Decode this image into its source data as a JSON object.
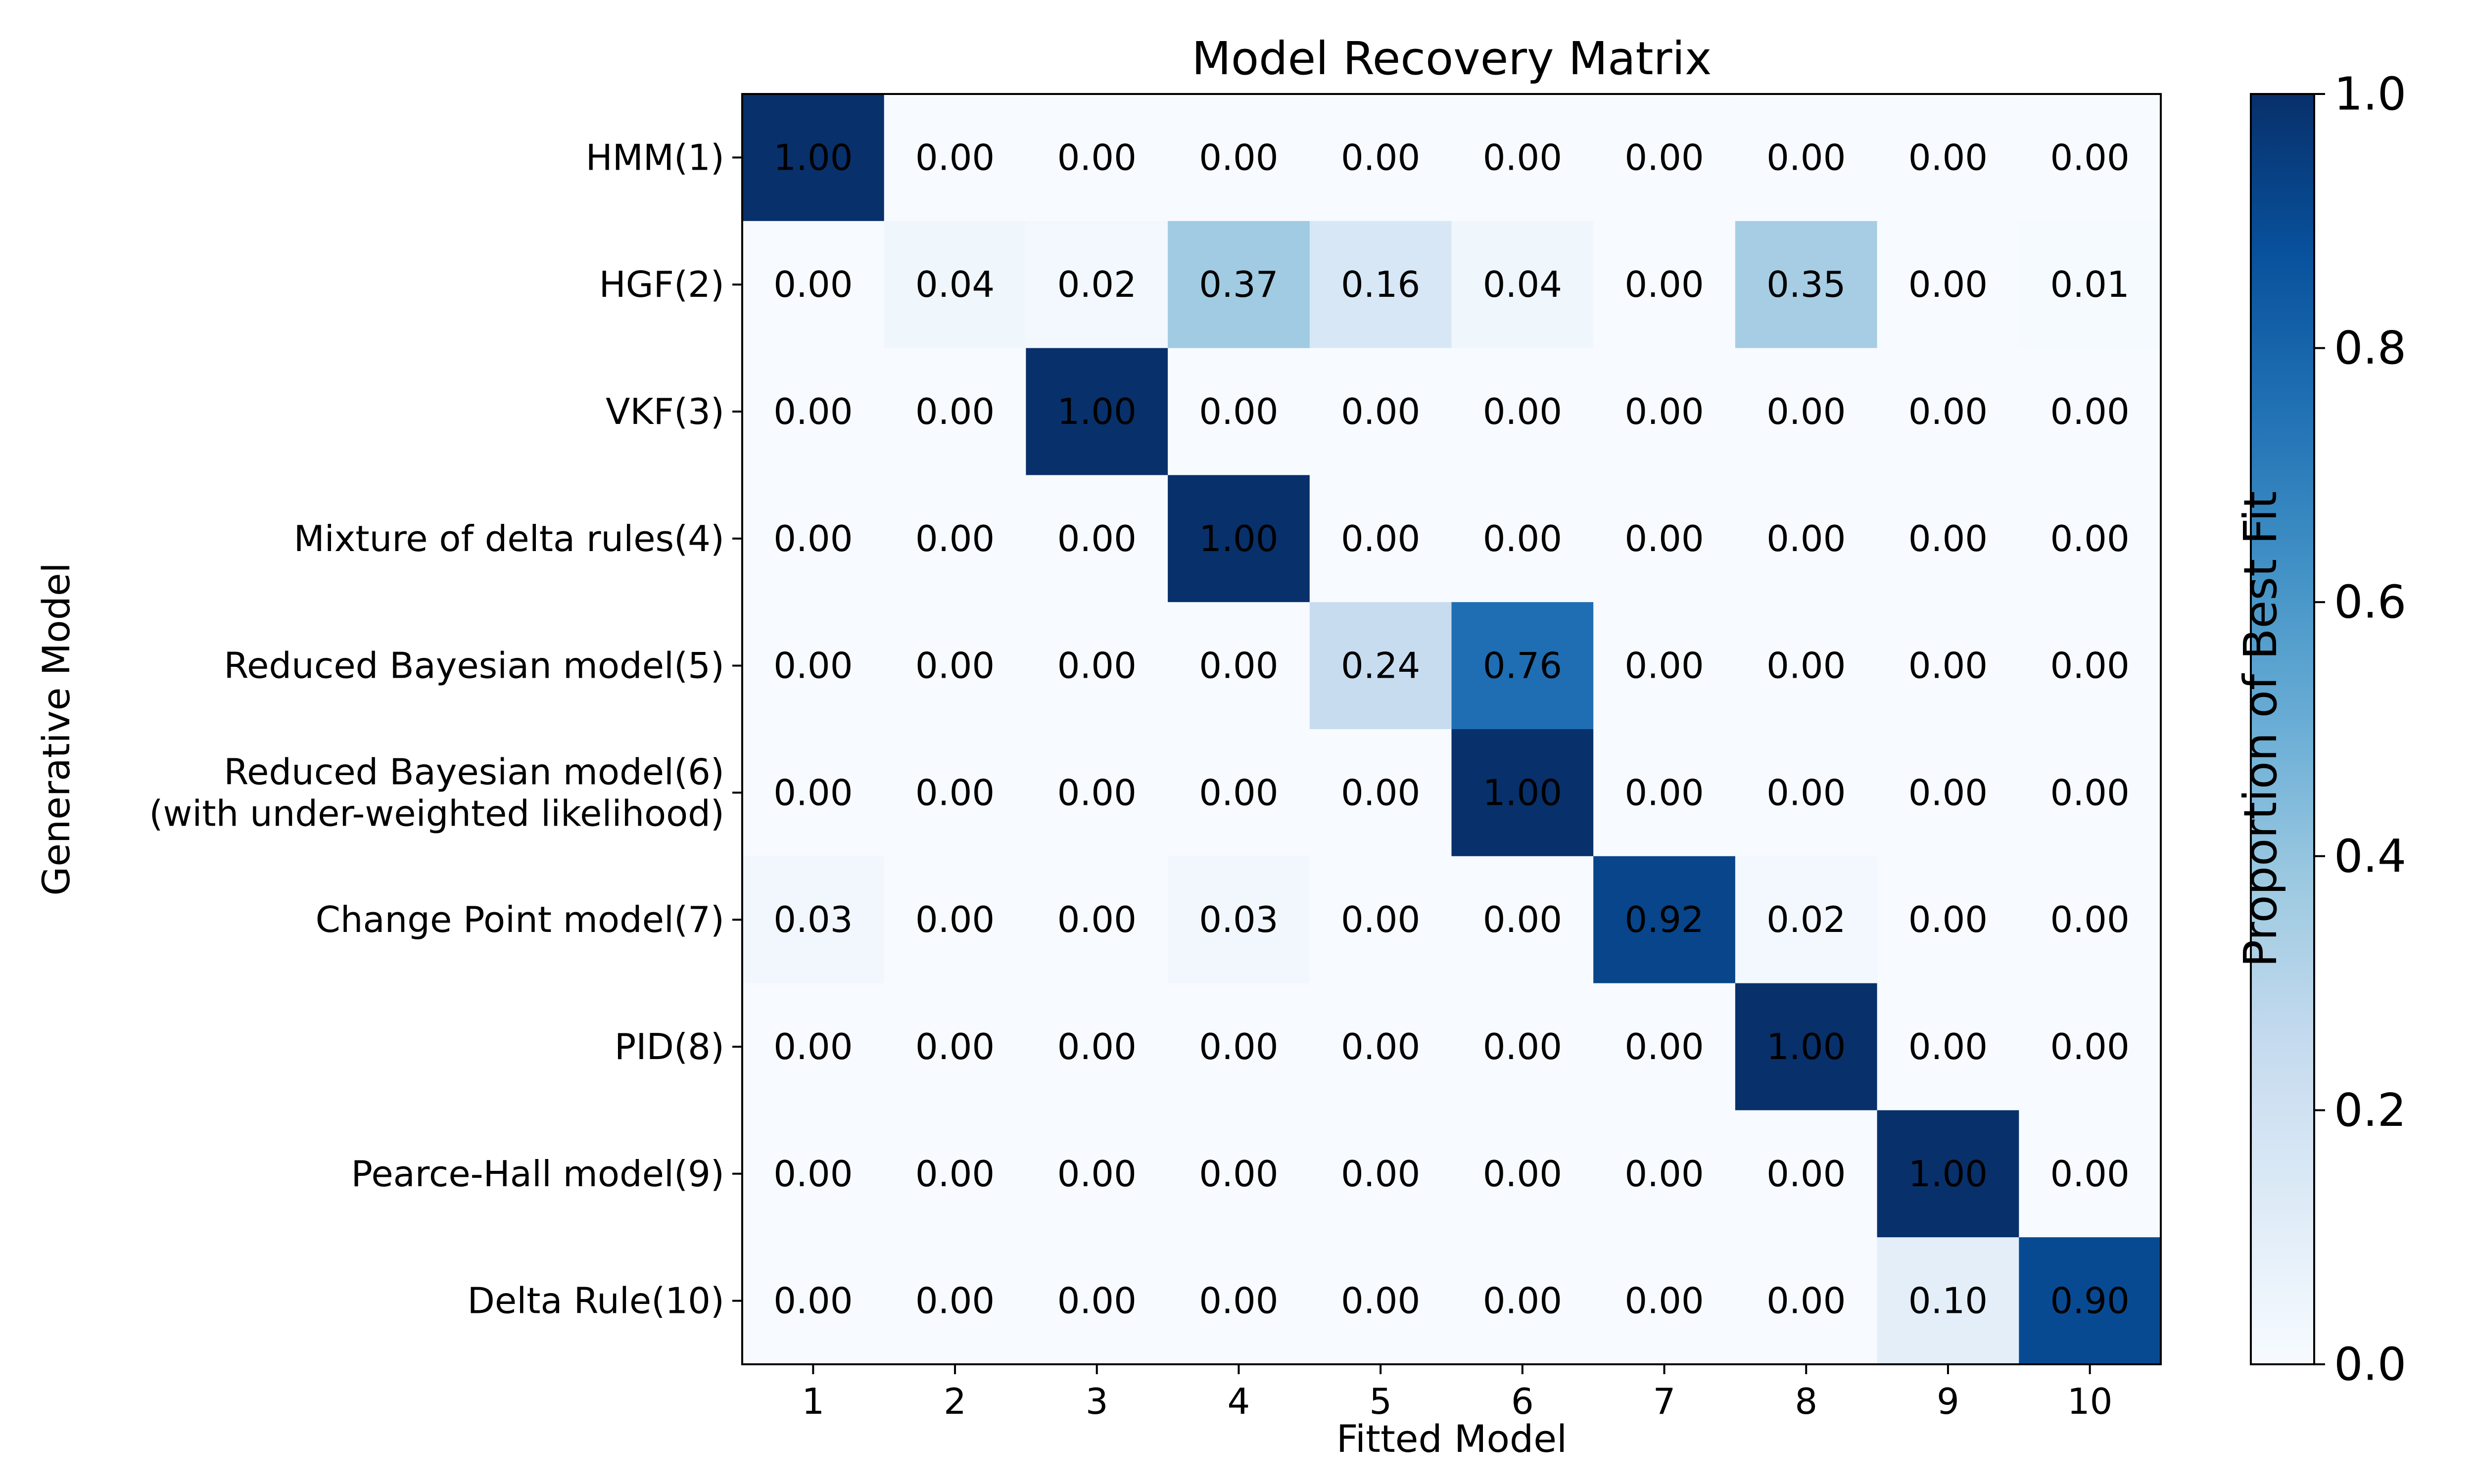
{
  "chart_data": {
    "type": "heatmap",
    "title": "Model Recovery Matrix",
    "xlabel": "Fitted Model",
    "ylabel": "Generative Model",
    "x_categories": [
      "1",
      "2",
      "3",
      "4",
      "5",
      "6",
      "7",
      "8",
      "9",
      "10"
    ],
    "y_categories": [
      [
        "HMM(1)"
      ],
      [
        "HGF(2)"
      ],
      [
        "VKF(3)"
      ],
      [
        "Mixture of delta rules(4)"
      ],
      [
        "Reduced Bayesian model(5)"
      ],
      [
        "Reduced Bayesian model(6)",
        "(with under-weighted likelihood)"
      ],
      [
        "Change Point model(7)"
      ],
      [
        "PID(8)"
      ],
      [
        "Pearce-Hall model(9)"
      ],
      [
        "Delta Rule(10)"
      ]
    ],
    "values": [
      [
        1.0,
        0.0,
        0.0,
        0.0,
        0.0,
        0.0,
        0.0,
        0.0,
        0.0,
        0.0
      ],
      [
        0.0,
        0.04,
        0.02,
        0.37,
        0.16,
        0.04,
        0.0,
        0.35,
        0.0,
        0.01
      ],
      [
        0.0,
        0.0,
        1.0,
        0.0,
        0.0,
        0.0,
        0.0,
        0.0,
        0.0,
        0.0
      ],
      [
        0.0,
        0.0,
        0.0,
        1.0,
        0.0,
        0.0,
        0.0,
        0.0,
        0.0,
        0.0
      ],
      [
        0.0,
        0.0,
        0.0,
        0.0,
        0.24,
        0.76,
        0.0,
        0.0,
        0.0,
        0.0
      ],
      [
        0.0,
        0.0,
        0.0,
        0.0,
        0.0,
        1.0,
        0.0,
        0.0,
        0.0,
        0.0
      ],
      [
        0.03,
        0.0,
        0.0,
        0.03,
        0.0,
        0.0,
        0.92,
        0.02,
        0.0,
        0.0
      ],
      [
        0.0,
        0.0,
        0.0,
        0.0,
        0.0,
        0.0,
        0.0,
        1.0,
        0.0,
        0.0
      ],
      [
        0.0,
        0.0,
        0.0,
        0.0,
        0.0,
        0.0,
        0.0,
        0.0,
        1.0,
        0.0
      ],
      [
        0.0,
        0.0,
        0.0,
        0.0,
        0.0,
        0.0,
        0.0,
        0.0,
        0.1,
        0.9
      ]
    ],
    "colormap": "Blues",
    "value_range": [
      0.0,
      1.0
    ],
    "colorbar": {
      "label": "Proportion of Best Fit",
      "ticks": [
        "0.0",
        "0.2",
        "0.4",
        "0.6",
        "0.8",
        "1.0"
      ]
    }
  }
}
